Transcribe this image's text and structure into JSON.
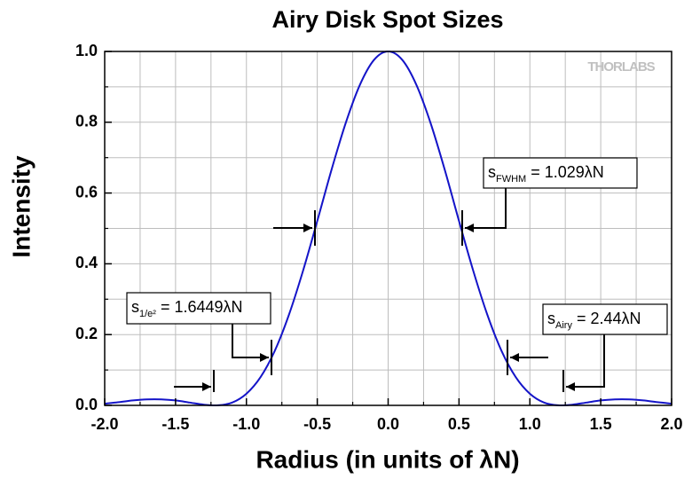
{
  "chart_data": {
    "type": "line",
    "title": "Airy Disk Spot Sizes",
    "xlabel": "Radius (in units of λN)",
    "ylabel": "Intensity",
    "watermark": "THORLABS",
    "x": [
      -2.0,
      -1.9,
      -1.8,
      -1.7,
      -1.6,
      -1.5,
      -1.4,
      -1.3,
      -1.2,
      -1.1,
      -1.0,
      -0.9,
      -0.8,
      -0.7,
      -0.6,
      -0.5,
      -0.4,
      -0.3,
      -0.2,
      -0.1,
      0.0,
      0.1,
      0.2,
      0.3,
      0.4,
      0.5,
      0.6,
      0.7,
      0.8,
      0.9,
      1.0,
      1.1,
      1.2,
      1.3,
      1.4,
      1.5,
      1.6,
      1.7,
      1.8,
      1.9,
      2.0
    ],
    "series": [
      {
        "color": "#1414c8",
        "values": [
          0.005,
          0.009,
          0.014,
          0.017,
          0.017,
          0.014,
          0.008,
          0.002,
          0.0002,
          0.008,
          0.033,
          0.08,
          0.154,
          0.256,
          0.381,
          0.521,
          0.665,
          0.797,
          0.905,
          0.976,
          1.0,
          0.976,
          0.905,
          0.797,
          0.665,
          0.521,
          0.381,
          0.256,
          0.154,
          0.08,
          0.033,
          0.008,
          0.0002,
          0.002,
          0.008,
          0.014,
          0.017,
          0.017,
          0.014,
          0.009,
          0.005
        ]
      }
    ],
    "xlim": [
      -2,
      2
    ],
    "ylim": [
      0,
      1
    ],
    "xticks": [
      {
        "value": -2,
        "label": "-2.0"
      },
      {
        "value": -1.5,
        "label": "-1.5"
      },
      {
        "value": -1,
        "label": "-1.0"
      },
      {
        "value": -0.5,
        "label": "-0.5"
      },
      {
        "value": 0,
        "label": "0.0"
      },
      0.5,
      {
        "value": 1,
        "label": "1.0"
      },
      1.5,
      {
        "value": 2,
        "label": "2.0"
      }
    ],
    "yticks": [
      {
        "value": 0,
        "label": "0.0"
      },
      0.2,
      0.4,
      0.6,
      0.8,
      {
        "value": 1,
        "label": "1.0"
      }
    ],
    "xminor": [
      -1.75,
      -1.25,
      -0.75,
      -0.25,
      0.25,
      0.75,
      1.25,
      1.75
    ],
    "yminor": [
      0.1,
      0.3,
      0.5,
      0.7,
      0.9
    ],
    "grid": true,
    "annotations": [
      {
        "main": "s",
        "sub": "FWHM",
        "rest": " = 1.029λN"
      },
      {
        "main": "s",
        "sub": "1/e²",
        "rest": " = 1.6449λN"
      },
      {
        "main": "s",
        "sub": "Airy",
        "rest": " = 2.44λN"
      }
    ]
  }
}
